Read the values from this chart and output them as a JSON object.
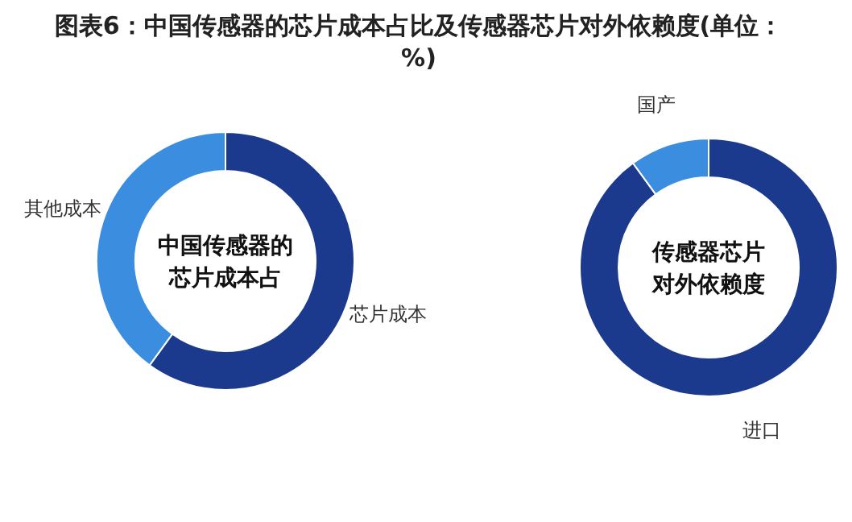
{
  "chart_data": [
    {
      "type": "donut",
      "title": "图表6：中国传感器的芯片成本占比及传感器芯片对外依赖度(单位：%)",
      "annotations": [
        "中国传感器的",
        "芯片成本占"
      ],
      "categories": [
        "其他成本",
        "芯片成本"
      ],
      "values": [
        40,
        60
      ],
      "colors": [
        "#3b8de0",
        "#1b3a8e"
      ],
      "legend": false
    },
    {
      "type": "donut",
      "annotations": [
        "传感器芯片",
        "对外依赖度"
      ],
      "categories": [
        "国产",
        "进口"
      ],
      "values": [
        10,
        90
      ],
      "colors": [
        "#3b8de0",
        "#1b3a8e"
      ],
      "legend": false
    }
  ]
}
